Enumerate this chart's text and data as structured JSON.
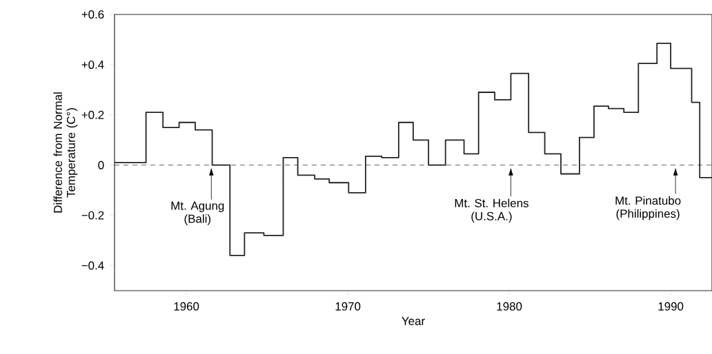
{
  "chart_data": {
    "type": "step",
    "xlabel": "Year",
    "ylabel": "Difference from Normal Temperature (C°)",
    "x": [
      1955.55,
      1957.5,
      1958.55,
      1959.55,
      1960.55,
      1961.6,
      1962.7,
      1963.6,
      1964.8,
      1966.0,
      1966.9,
      1967.95,
      1968.85,
      1970.05,
      1971.1,
      1972.1,
      1973.15,
      1974.05,
      1975.0,
      1976.05,
      1977.2,
      1978.1,
      1979.1,
      1980.1,
      1981.2,
      1982.2,
      1983.2,
      1984.35,
      1985.25,
      1986.15,
      1987.1,
      1988.0,
      1989.15,
      1990.0,
      1991.3,
      1991.8,
      1992.56
    ],
    "values": [
      0.01,
      0.21,
      0.15,
      0.17,
      0.14,
      0.0,
      -0.36,
      -0.27,
      -0.28,
      0.03,
      -0.04,
      -0.055,
      -0.07,
      -0.11,
      0.035,
      0.03,
      0.17,
      0.1,
      0.0,
      0.1,
      0.045,
      0.29,
      0.26,
      0.365,
      0.13,
      0.045,
      -0.035,
      0.11,
      0.235,
      0.225,
      0.21,
      0.405,
      0.485,
      0.385,
      0.25,
      -0.05,
      -0.05
    ],
    "color": "#222222",
    "xlim": [
      1955.55,
      1992.56
    ],
    "ylim": [
      -0.5,
      0.6
    ],
    "xticks": [
      1960,
      1970,
      1980,
      1990
    ],
    "yticks": [
      {
        "value": -0.4,
        "label": "−0.4"
      },
      {
        "value": -0.2,
        "label": "−0.2"
      },
      0,
      {
        "value": 0.2,
        "label": "+0.2"
      },
      {
        "value": 0.4,
        "label": "+0.4"
      },
      {
        "value": 0.6,
        "label": "+0.6"
      }
    ],
    "ref_lines": [
      {
        "axis": "y",
        "value": 0,
        "line_style": "dashed",
        "color": "#333333"
      }
    ],
    "annotations": [
      "Mt. Agung (Bali)",
      {
        "text": "Mt. St. Helens (U.S.A.)",
        "x": 1980.1,
        "y": 0
      },
      {
        "text": "Mt. Pinatubo (Philippines)",
        "x": 1990.3,
        "y": 0
      }
    ],
    "line_style": "solid"
  }
}
